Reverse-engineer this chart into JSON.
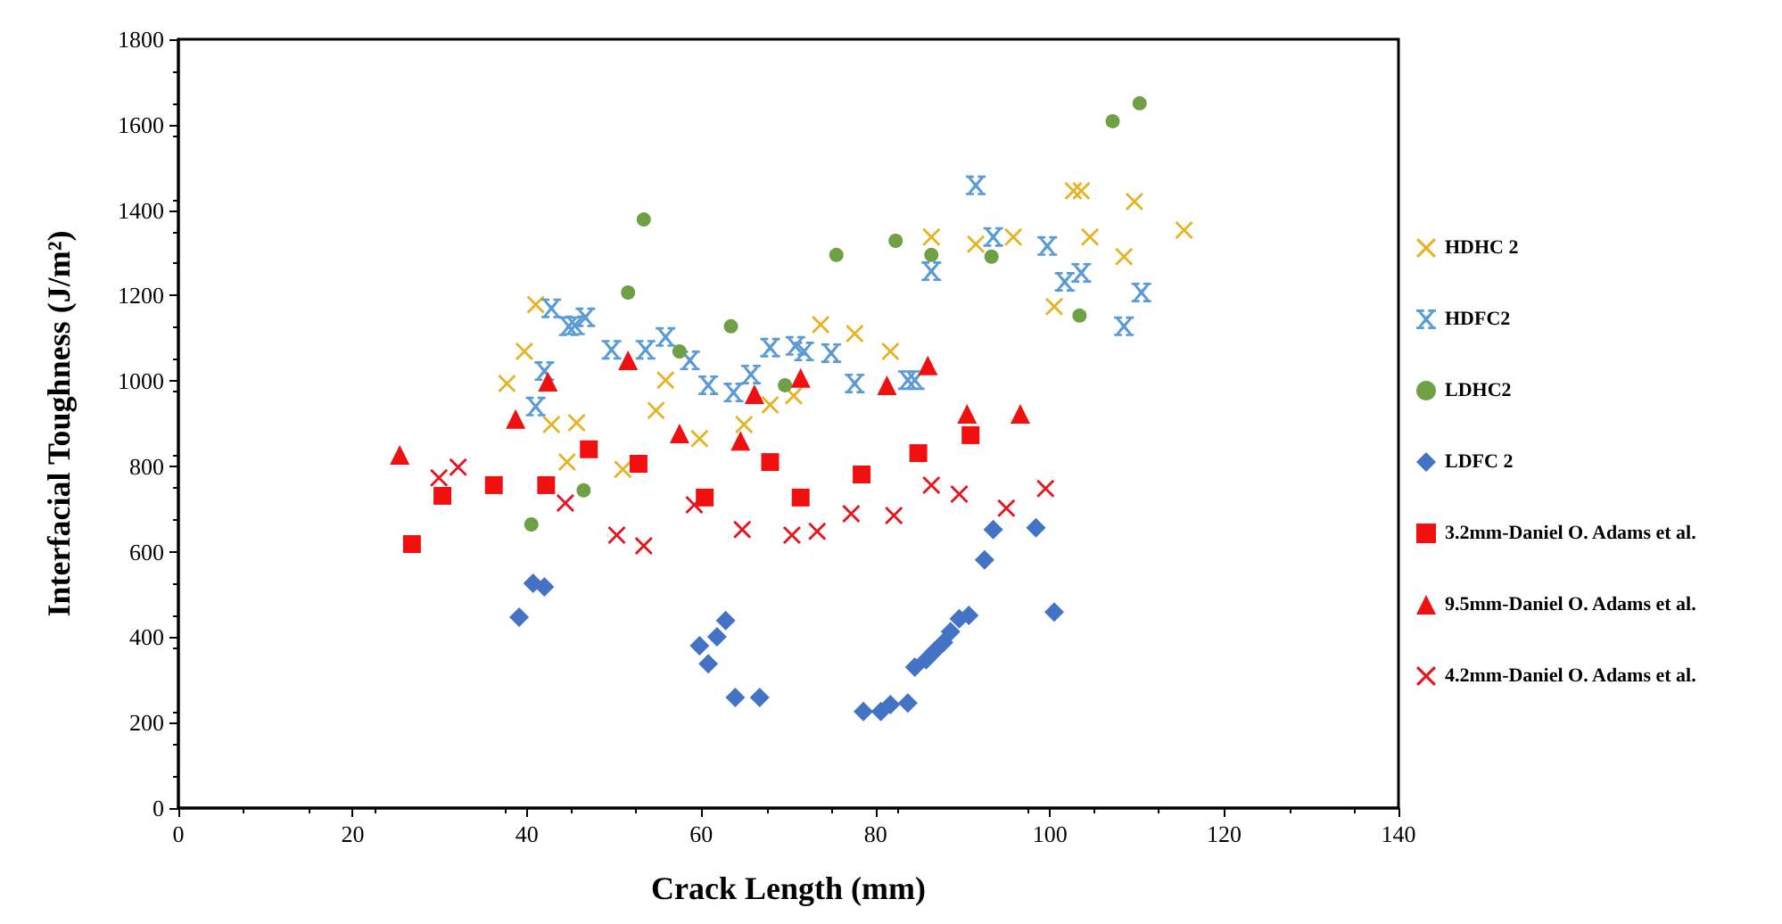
{
  "chart_data": {
    "type": "scatter",
    "xlabel": "Crack Length (mm)",
    "ylabel": "Interfacial Toughness (J/m²)",
    "xlim": [
      0,
      140
    ],
    "ylim": [
      0,
      1800
    ],
    "xticks": [
      0,
      20,
      40,
      60,
      80,
      100,
      120,
      140
    ],
    "yticks": [
      0,
      200,
      400,
      600,
      800,
      1000,
      1200,
      1400,
      1600,
      1800
    ],
    "legend": "right",
    "grid": false,
    "series": [
      {
        "name": "HDHC 2",
        "color": "#e6b325",
        "marker": "cross",
        "x": [
          41,
          39.7,
          37.7,
          42.8,
          44.6,
          45.7,
          51,
          55.9,
          54.8,
          59.8,
          64.9,
          67.9,
          70.6,
          73.7,
          77.6,
          81.7,
          86.4,
          91.5,
          95.8,
          100.5,
          102.7,
          103.6,
          104.6,
          108.5,
          109.7,
          115.4
        ],
        "values": [
          1179,
          1069,
          994,
          898,
          810,
          902,
          793,
          1002,
          931,
          865,
          898,
          944,
          965,
          1132,
          1111,
          1069,
          1337,
          1320,
          1337,
          1174,
          1445,
          1445,
          1337,
          1291,
          1420,
          1353
        ]
      },
      {
        "name": "HDFC2",
        "color": "#5b9bd5",
        "marker": "star",
        "x": [
          42.8,
          44.8,
          42,
          41,
          46.7,
          45.5,
          49.7,
          53.6,
          55.9,
          58.7,
          60.8,
          63.7,
          65.7,
          67.9,
          70.8,
          71.8,
          74.9,
          77.6,
          83.7,
          84.5,
          86.4,
          91.5,
          93.5,
          99.7,
          101.7,
          103.6,
          110.5,
          108.5
        ],
        "values": [
          1170,
          1128,
          1023,
          940,
          1149,
          1130,
          1073,
          1073,
          1103,
          1048,
          990,
          973,
          1015,
          1078,
          1082,
          1069,
          1065,
          994,
          1002,
          1002,
          1257,
          1458,
          1337,
          1316,
          1232,
          1253,
          1207,
          1128
        ]
      },
      {
        "name": "LDHC2",
        "color": "#70a046",
        "marker": "circle",
        "x": [
          40.5,
          46.5,
          53.4,
          51.6,
          57.5,
          63.4,
          69.6,
          75.5,
          82.3,
          86.4,
          93.3,
          103.4,
          107.2,
          110.3
        ],
        "values": [
          664,
          744,
          1378,
          1207,
          1069,
          1128,
          990,
          1295,
          1328,
          1295,
          1291,
          1153,
          1608,
          1650
        ]
      },
      {
        "name": "LDFC 2",
        "color": "#4472c4",
        "marker": "diamond",
        "x": [
          39.1,
          40.7,
          42,
          59.8,
          60.8,
          61.8,
          62.8,
          63.9,
          66.7,
          78.6,
          80.6,
          81.7,
          83.7,
          84.5,
          85.8,
          86.8,
          87.8,
          88.6,
          89.6,
          90.7,
          92.5,
          93.5,
          98.4,
          100.5
        ],
        "values": [
          447,
          526,
          518,
          380,
          338,
          401,
          439,
          259,
          259,
          226,
          226,
          242,
          246,
          330,
          347,
          368,
          388,
          413,
          443,
          451,
          581,
          652,
          656,
          459
        ]
      },
      {
        "name": "3.2mm-Daniel O. Adams et al.",
        "color": "#f01010",
        "marker": "square",
        "x": [
          26.8,
          30.3,
          36.2,
          42.2,
          47.1,
          52.8,
          60.4,
          67.9,
          71.4,
          78.4,
          84.9,
          90.9
        ],
        "values": [
          618,
          731,
          756,
          756,
          840,
          806,
          727,
          810,
          727,
          781,
          831,
          873
        ]
      },
      {
        "name": "9.5mm-Daniel O. Adams et al.",
        "color": "#f01010",
        "marker": "triangle",
        "x": [
          25.4,
          38.7,
          42.4,
          51.6,
          57.5,
          64.5,
          66.1,
          71.4,
          81.3,
          86,
          90.5,
          96.6
        ],
        "values": [
          827,
          911,
          998,
          1048,
          877,
          860,
          969,
          1007,
          990,
          1036,
          923,
          923
        ]
      },
      {
        "name": "4.2mm-Daniel O. Adams et al.",
        "color": "#e8141c",
        "marker": "cross",
        "x": [
          29.9,
          32.1,
          44.4,
          50.3,
          53.4,
          59.2,
          64.7,
          70.4,
          73.3,
          77.2,
          82.1,
          86.4,
          89.6,
          95,
          99.5
        ],
        "values": [
          773,
          798,
          714,
          639,
          614,
          710,
          652,
          639,
          648,
          689,
          685,
          756,
          735,
          702,
          748
        ]
      }
    ]
  }
}
